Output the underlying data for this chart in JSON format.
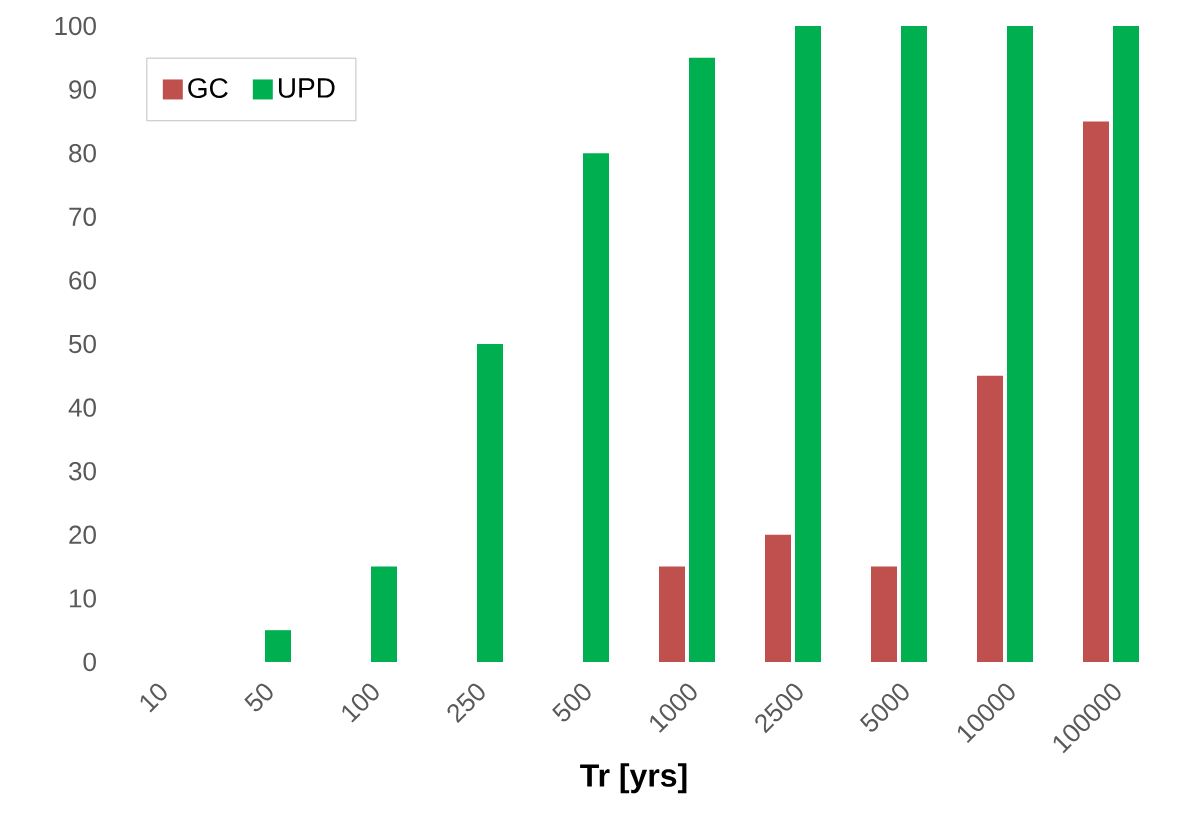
{
  "chart_data": {
    "type": "bar",
    "xlabel": "Tr [yrs]",
    "categories": [
      "10",
      "50",
      "100",
      "250",
      "500",
      "1000",
      "2500",
      "5000",
      "10000",
      "100000"
    ],
    "series": [
      {
        "name": "GC",
        "color": "#c0504d",
        "values": [
          0,
          0,
          0,
          0,
          0,
          15,
          20,
          15,
          45,
          85
        ]
      },
      {
        "name": "UPD",
        "color": "#00b050",
        "values": [
          0,
          5,
          15,
          50,
          80,
          95,
          100,
          100,
          100,
          100
        ]
      }
    ],
    "ylim": [
      0,
      100
    ],
    "yticks": [
      0,
      10,
      20,
      30,
      40,
      50,
      60,
      70,
      80,
      90,
      100
    ],
    "legend": "top left"
  }
}
